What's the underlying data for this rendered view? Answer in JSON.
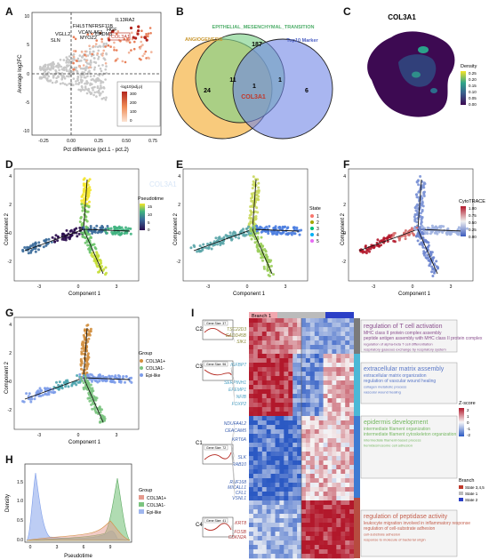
{
  "panels": {
    "A": {
      "label": "A",
      "ylabel": "Average log2FC",
      "xlabel": "Pct difference (pct.1 - pct.2)",
      "xticks": [
        "-0.25",
        "0.00",
        "0.25",
        "0.50",
        "0.75"
      ],
      "yticks": [
        "10",
        "5",
        "0",
        "-5",
        "-10"
      ],
      "genes": [
        "IL13RA2",
        "FHL5",
        "TNFRSF11B",
        "HGF",
        "VGLL2",
        "VCAN-AS1",
        "CADM3",
        "SLN",
        "MYOZ2",
        "COL3A1"
      ],
      "legend_title": "-log10(adj.p)",
      "legend_ticks": [
        "300",
        "200",
        "100",
        "0"
      ]
    },
    "B": {
      "label": "B",
      "sets": [
        "ANGIOGENESIS",
        "EPITHELIAL_MESENCHYMAL_TRANSITION",
        "Top10 Marker"
      ],
      "counts": [
        "24",
        "11",
        "187",
        "1",
        "1",
        "6"
      ],
      "center_gene": "COL3A1"
    },
    "C": {
      "label": "C",
      "title": "COL3A1",
      "legend_title": "Density",
      "legend_ticks": [
        "0.25",
        "0.20",
        "0.15",
        "0.10",
        "0.05",
        "0.00"
      ]
    },
    "D": {
      "label": "D",
      "gene": "COL3A1",
      "legend_title": "Pseudotime",
      "legend_ticks": [
        "15",
        "10",
        "5",
        "0"
      ],
      "xlabel": "Component 1",
      "ylabel": "Component 2",
      "xticks": [
        "-3",
        "0",
        "3"
      ],
      "yticks": [
        "4",
        "2",
        "0",
        "-2"
      ]
    },
    "E": {
      "label": "E",
      "legend_title": "State",
      "states": [
        "1",
        "2",
        "3",
        "4",
        "5"
      ],
      "xlabel": "Component 1",
      "ylabel": "Component 2",
      "xticks": [
        "-3",
        "0",
        "3"
      ],
      "yticks": [
        "4",
        "2",
        "0",
        "-2"
      ]
    },
    "F": {
      "label": "F",
      "legend_title": "CytoTRACE",
      "legend_ticks": [
        "1.00",
        "0.75",
        "0.50",
        "0.25",
        "0.00"
      ],
      "xlabel": "Component 1",
      "ylabel": "Component 2",
      "xticks": [
        "-3",
        "0",
        "3"
      ],
      "yticks": [
        "4",
        "2",
        "0",
        "-2"
      ]
    },
    "G": {
      "label": "G",
      "legend_title": "Group",
      "groups": [
        "COL3A1+",
        "COL3A1-",
        "Epi-like"
      ],
      "xlabel": "Component 1",
      "ylabel": "Component 2",
      "xticks": [
        "-3",
        "0",
        "3"
      ],
      "yticks": [
        "4",
        "2",
        "0",
        "-2"
      ]
    },
    "H": {
      "label": "H",
      "xlabel": "Pseudotime",
      "ylabel": "Density",
      "xticks": [
        "0",
        "3",
        "6",
        "9"
      ],
      "yticks": [
        "1.5",
        "1.0",
        "0.5",
        "0.0"
      ],
      "legend_title": "Group",
      "groups": [
        "COL3A1+",
        "COL3A1-",
        "Epi-like"
      ]
    },
    "I": {
      "label": "I",
      "branch_label": "Branch 1",
      "clusters": [
        {
          "id": "C2",
          "gene_size": "Gene Size: 37",
          "genes": [
            "TSC22D3",
            "GADD45B",
            "SIK1"
          ],
          "title": "regulation of T cell activation",
          "terms": [
            "MHC class II protein complex assembly",
            "peptide antigen assembly with MHC class II protein complex",
            "regulation of alpha-beta T cell differentiation",
            "respiratory gaseous exchange by respiratory system"
          ]
        },
        {
          "id": "C3",
          "gene_size": "Gene Size: 96",
          "genes": [
            "IGFBP7",
            "SERPINH1",
            "EFEMP1",
            "NFIB",
            "FOXP2"
          ],
          "title": "extracellular matrix assembly",
          "terms": [
            "extracellular matrix organization",
            "regulation of vascular wound healing",
            "collagen metabolic process",
            "vascular wound healing"
          ]
        },
        {
          "id": "C1",
          "gene_size": "Gene Size: 72",
          "genes": [
            "NDUFA4L2",
            "CEACAM5",
            "KRT6A",
            "SLK",
            "RAB10",
            "RNF168",
            "MICALL1",
            "CFL1",
            "VSNL1"
          ],
          "title": "epidermis development",
          "terms": [
            "intermediate filament organization",
            "intermediate filament cytoskeleton organization",
            "intermediate filament-based process",
            "hemidesmosome cell adhesion"
          ]
        },
        {
          "id": "C4",
          "gene_size": "Gene Size: 41",
          "genes": [
            "KRT8",
            "FOSB",
            "CDKN2A"
          ],
          "title": "regulation of peptidase activity",
          "terms": [
            "leukocyte migration involved in inflammatory response",
            "regulation of cell-substrate adhesion",
            "cell-substrate adhesion",
            "response to molecule of bacterial origin"
          ]
        }
      ],
      "zscore_title": "Z-score",
      "zscore_ticks": [
        "2",
        "1",
        "0",
        "-1",
        "-2"
      ],
      "branch_legend_title": "Branch",
      "branches": [
        "State 3,4,5",
        "State 1",
        "State 2"
      ]
    }
  },
  "colors": {
    "accent_red": "#c0392b",
    "venn_orange": "#f5b850",
    "venn_green": "#7fd18b",
    "venn_blue": "#6f85e6",
    "state_colors": [
      "#f8766d",
      "#a3a500",
      "#00bf7d",
      "#00b0f6",
      "#e76bf3"
    ],
    "group_colors": [
      "#d28f3f",
      "#7bc47f",
      "#7c9ce9"
    ]
  }
}
